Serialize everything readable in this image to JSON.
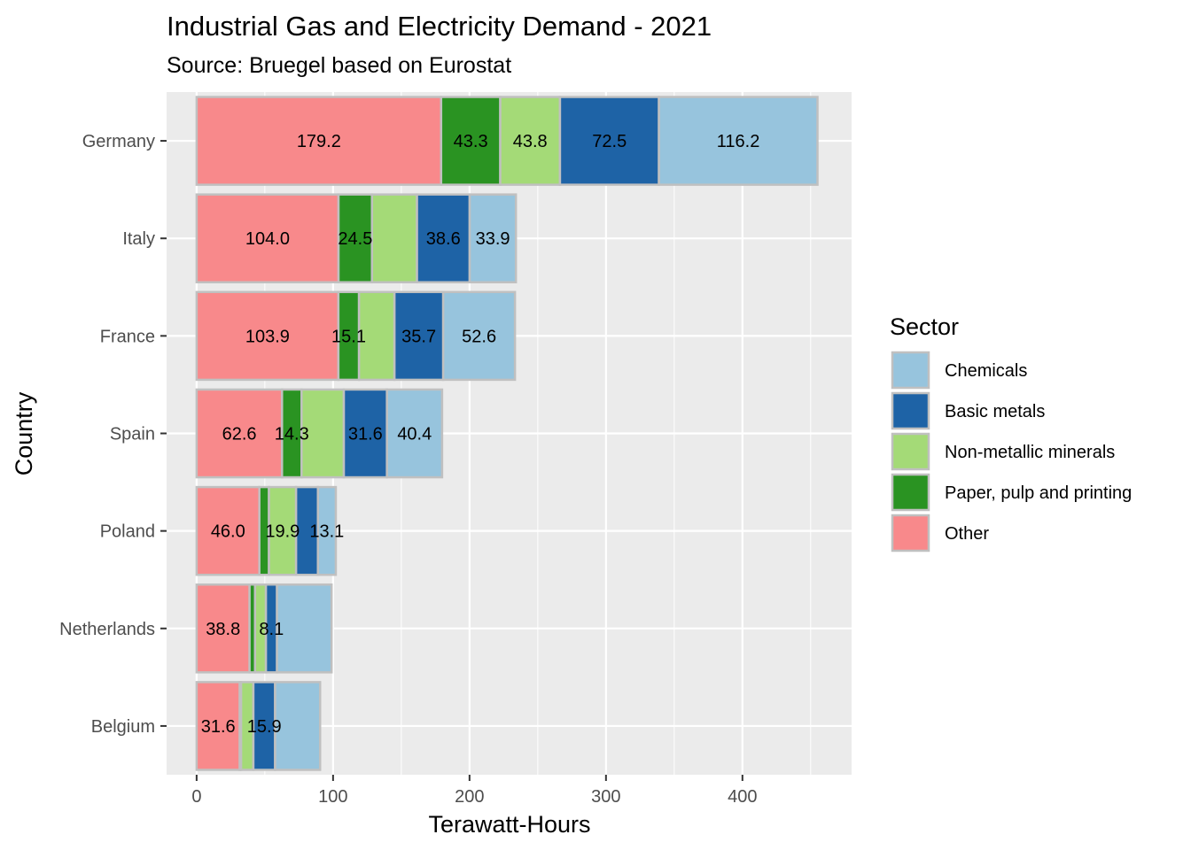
{
  "chart_data": {
    "type": "bar",
    "orientation": "horizontal",
    "stacked": true,
    "title": "Industrial Gas and Electricity Demand - 2021",
    "subtitle": "Source: Bruegel based on Eurostat",
    "xlabel": "Terawatt-Hours",
    "ylabel": "Country",
    "xlim": [
      -22,
      480
    ],
    "x_ticks": [
      "0",
      "100",
      "200",
      "300",
      "400"
    ],
    "grid": true,
    "legend": {
      "title": "Sector",
      "placement": "right"
    },
    "categories": [
      "Germany",
      "Italy",
      "France",
      "Spain",
      "Poland",
      "Netherlands",
      "Belgium"
    ],
    "series": [
      {
        "name": "Other",
        "color": "#F8898B",
        "values": [
          179.2,
          104.0,
          103.9,
          62.6,
          46.0,
          38.8,
          31.6
        ],
        "labels": [
          "179.2",
          "104.0",
          "103.9",
          "62.6",
          "46.0",
          "38.8",
          "31.6"
        ]
      },
      {
        "name": "Paper, pulp and printing",
        "color": "#2A9322",
        "values": [
          43.3,
          24.5,
          15.1,
          14.3,
          7.0,
          4.0,
          1.0
        ],
        "labels": [
          "43.3",
          "24.5",
          "15.1",
          "14.3",
          "",
          "",
          ""
        ]
      },
      {
        "name": "Non-metallic minerals",
        "color": "#A4DA77",
        "values": [
          43.8,
          33.0,
          26.0,
          31.0,
          19.9,
          8.0,
          9.0
        ],
        "labels": [
          "43.8",
          "",
          "",
          "",
          "19.9",
          "",
          ""
        ]
      },
      {
        "name": "Basic metals",
        "color": "#1E63A6",
        "values": [
          72.5,
          38.6,
          35.7,
          31.6,
          16.0,
          8.1,
          15.9
        ],
        "labels": [
          "72.5",
          "38.6",
          "35.7",
          "31.6",
          "",
          "8.1",
          "15.9"
        ]
      },
      {
        "name": "Chemicals",
        "color": "#97C4DD",
        "values": [
          116.2,
          33.9,
          52.6,
          40.4,
          13.1,
          40.0,
          33.0
        ],
        "labels": [
          "116.2",
          "33.9",
          "52.6",
          "40.4",
          "13.1",
          "",
          ""
        ]
      }
    ],
    "legend_order": [
      "Chemicals",
      "Basic metals",
      "Non-metallic minerals",
      "Paper, pulp and printing",
      "Other"
    ]
  }
}
